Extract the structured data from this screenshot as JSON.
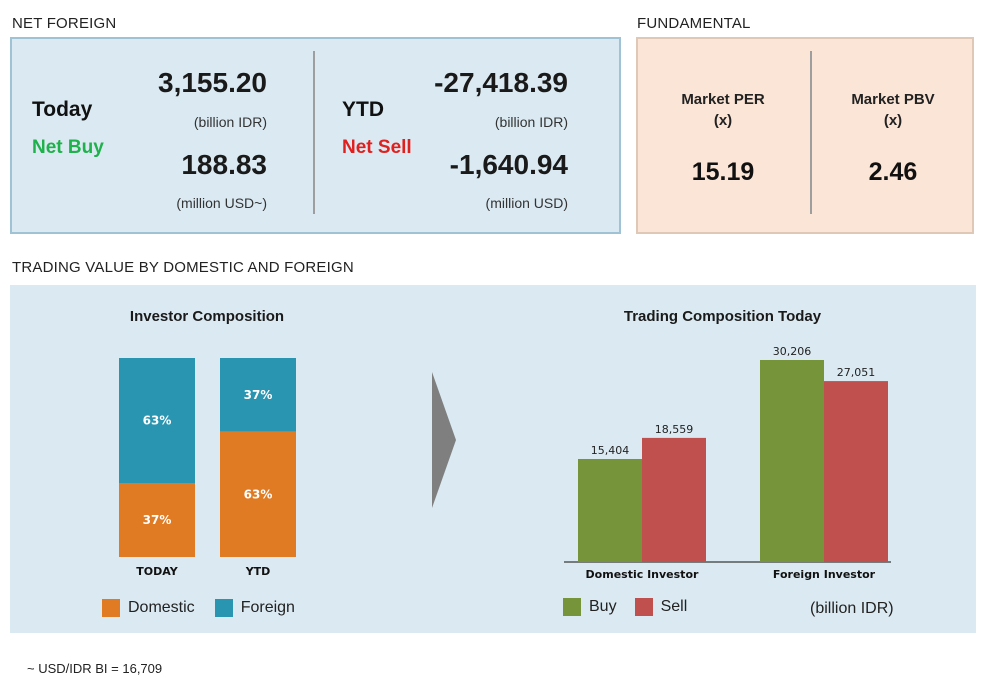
{
  "net_foreign": {
    "section_title": "NET FOREIGN",
    "today": {
      "label": "Today",
      "status": "Net Buy",
      "idr_value": "3,155.20",
      "idr_unit": "(billion IDR)",
      "usd_value": "188.83",
      "usd_unit": "(million USD~)"
    },
    "ytd": {
      "label": "YTD",
      "status": "Net Sell",
      "idr_value": "-27,418.39",
      "idr_unit": "(billion IDR)",
      "usd_value": "-1,640.94",
      "usd_unit": "(million USD)"
    }
  },
  "fundamental": {
    "section_title": "FUNDAMENTAL",
    "per": {
      "label": "Market PER",
      "unit": "(x)",
      "value": "15.19"
    },
    "pbv": {
      "label": "Market PBV",
      "unit": "(x)",
      "value": "2.46"
    }
  },
  "trading": {
    "section_title": "TRADING VALUE BY DOMESTIC AND FOREIGN",
    "footnote": "~ USD/IDR BI = 16,709",
    "unit_note": "(billion IDR)"
  },
  "colors": {
    "domestic": "#e07b24",
    "foreign": "#2a95b0",
    "buy": "#76953b",
    "sell": "#c0504d",
    "net_buy": "#1fb14b",
    "net_sell": "#e0201f"
  },
  "chart_data": [
    {
      "type": "bar",
      "stacked": true,
      "percent": true,
      "title": "Investor Composition",
      "categories": [
        "TODAY",
        "YTD"
      ],
      "series": [
        {
          "name": "Domestic",
          "values": [
            37,
            63
          ],
          "labels": [
            "37%",
            "63%"
          ]
        },
        {
          "name": "Foreign",
          "values": [
            63,
            37
          ],
          "labels": [
            "63%",
            "37%"
          ]
        }
      ],
      "ylim": [
        0,
        100
      ],
      "legend": "bottom",
      "grid": false
    },
    {
      "type": "bar",
      "title": "Trading Composition Today",
      "categories": [
        "Domestic Investor",
        "Foreign Investor"
      ],
      "series": [
        {
          "name": "Buy",
          "values": [
            15404,
            30206
          ],
          "labels": [
            "15,404",
            "30,206"
          ]
        },
        {
          "name": "Sell",
          "values": [
            18559,
            27051
          ],
          "labels": [
            "18,559",
            "27,051"
          ]
        }
      ],
      "ylim": [
        0,
        30206
      ],
      "legend": "bottom",
      "grid": false
    }
  ]
}
